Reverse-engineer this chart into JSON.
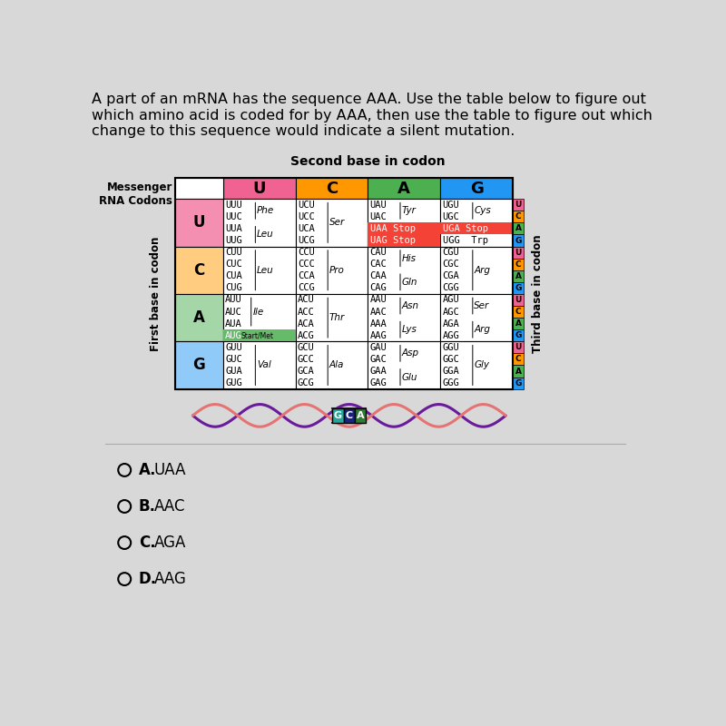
{
  "title_text": "A part of an mRNA has the sequence AAA. Use the table below to figure out\nwhich amino acid is coded for by AAA, then use the table to figure out which\nchange to this sequence would indicate a silent mutation.",
  "bg_color": "#d8d8d8",
  "header_U_color": "#f06292",
  "header_C_color": "#ff9800",
  "header_A_color": "#4caf50",
  "header_G_color": "#2196f3",
  "row_U_color": "#f48fb1",
  "row_C_color": "#ffcc80",
  "row_A_color": "#a5d6a7",
  "row_G_color": "#90caf9",
  "stop_color": "#f44336",
  "aug_color": "#66bb6a",
  "third_U_color": "#f06292",
  "third_C_color": "#ff9800",
  "third_A_color": "#4caf50",
  "third_G_color": "#2196f3",
  "answers": [
    "A.  UAA",
    "B.  AAC",
    "C.  AGA",
    "D.  AAG"
  ]
}
